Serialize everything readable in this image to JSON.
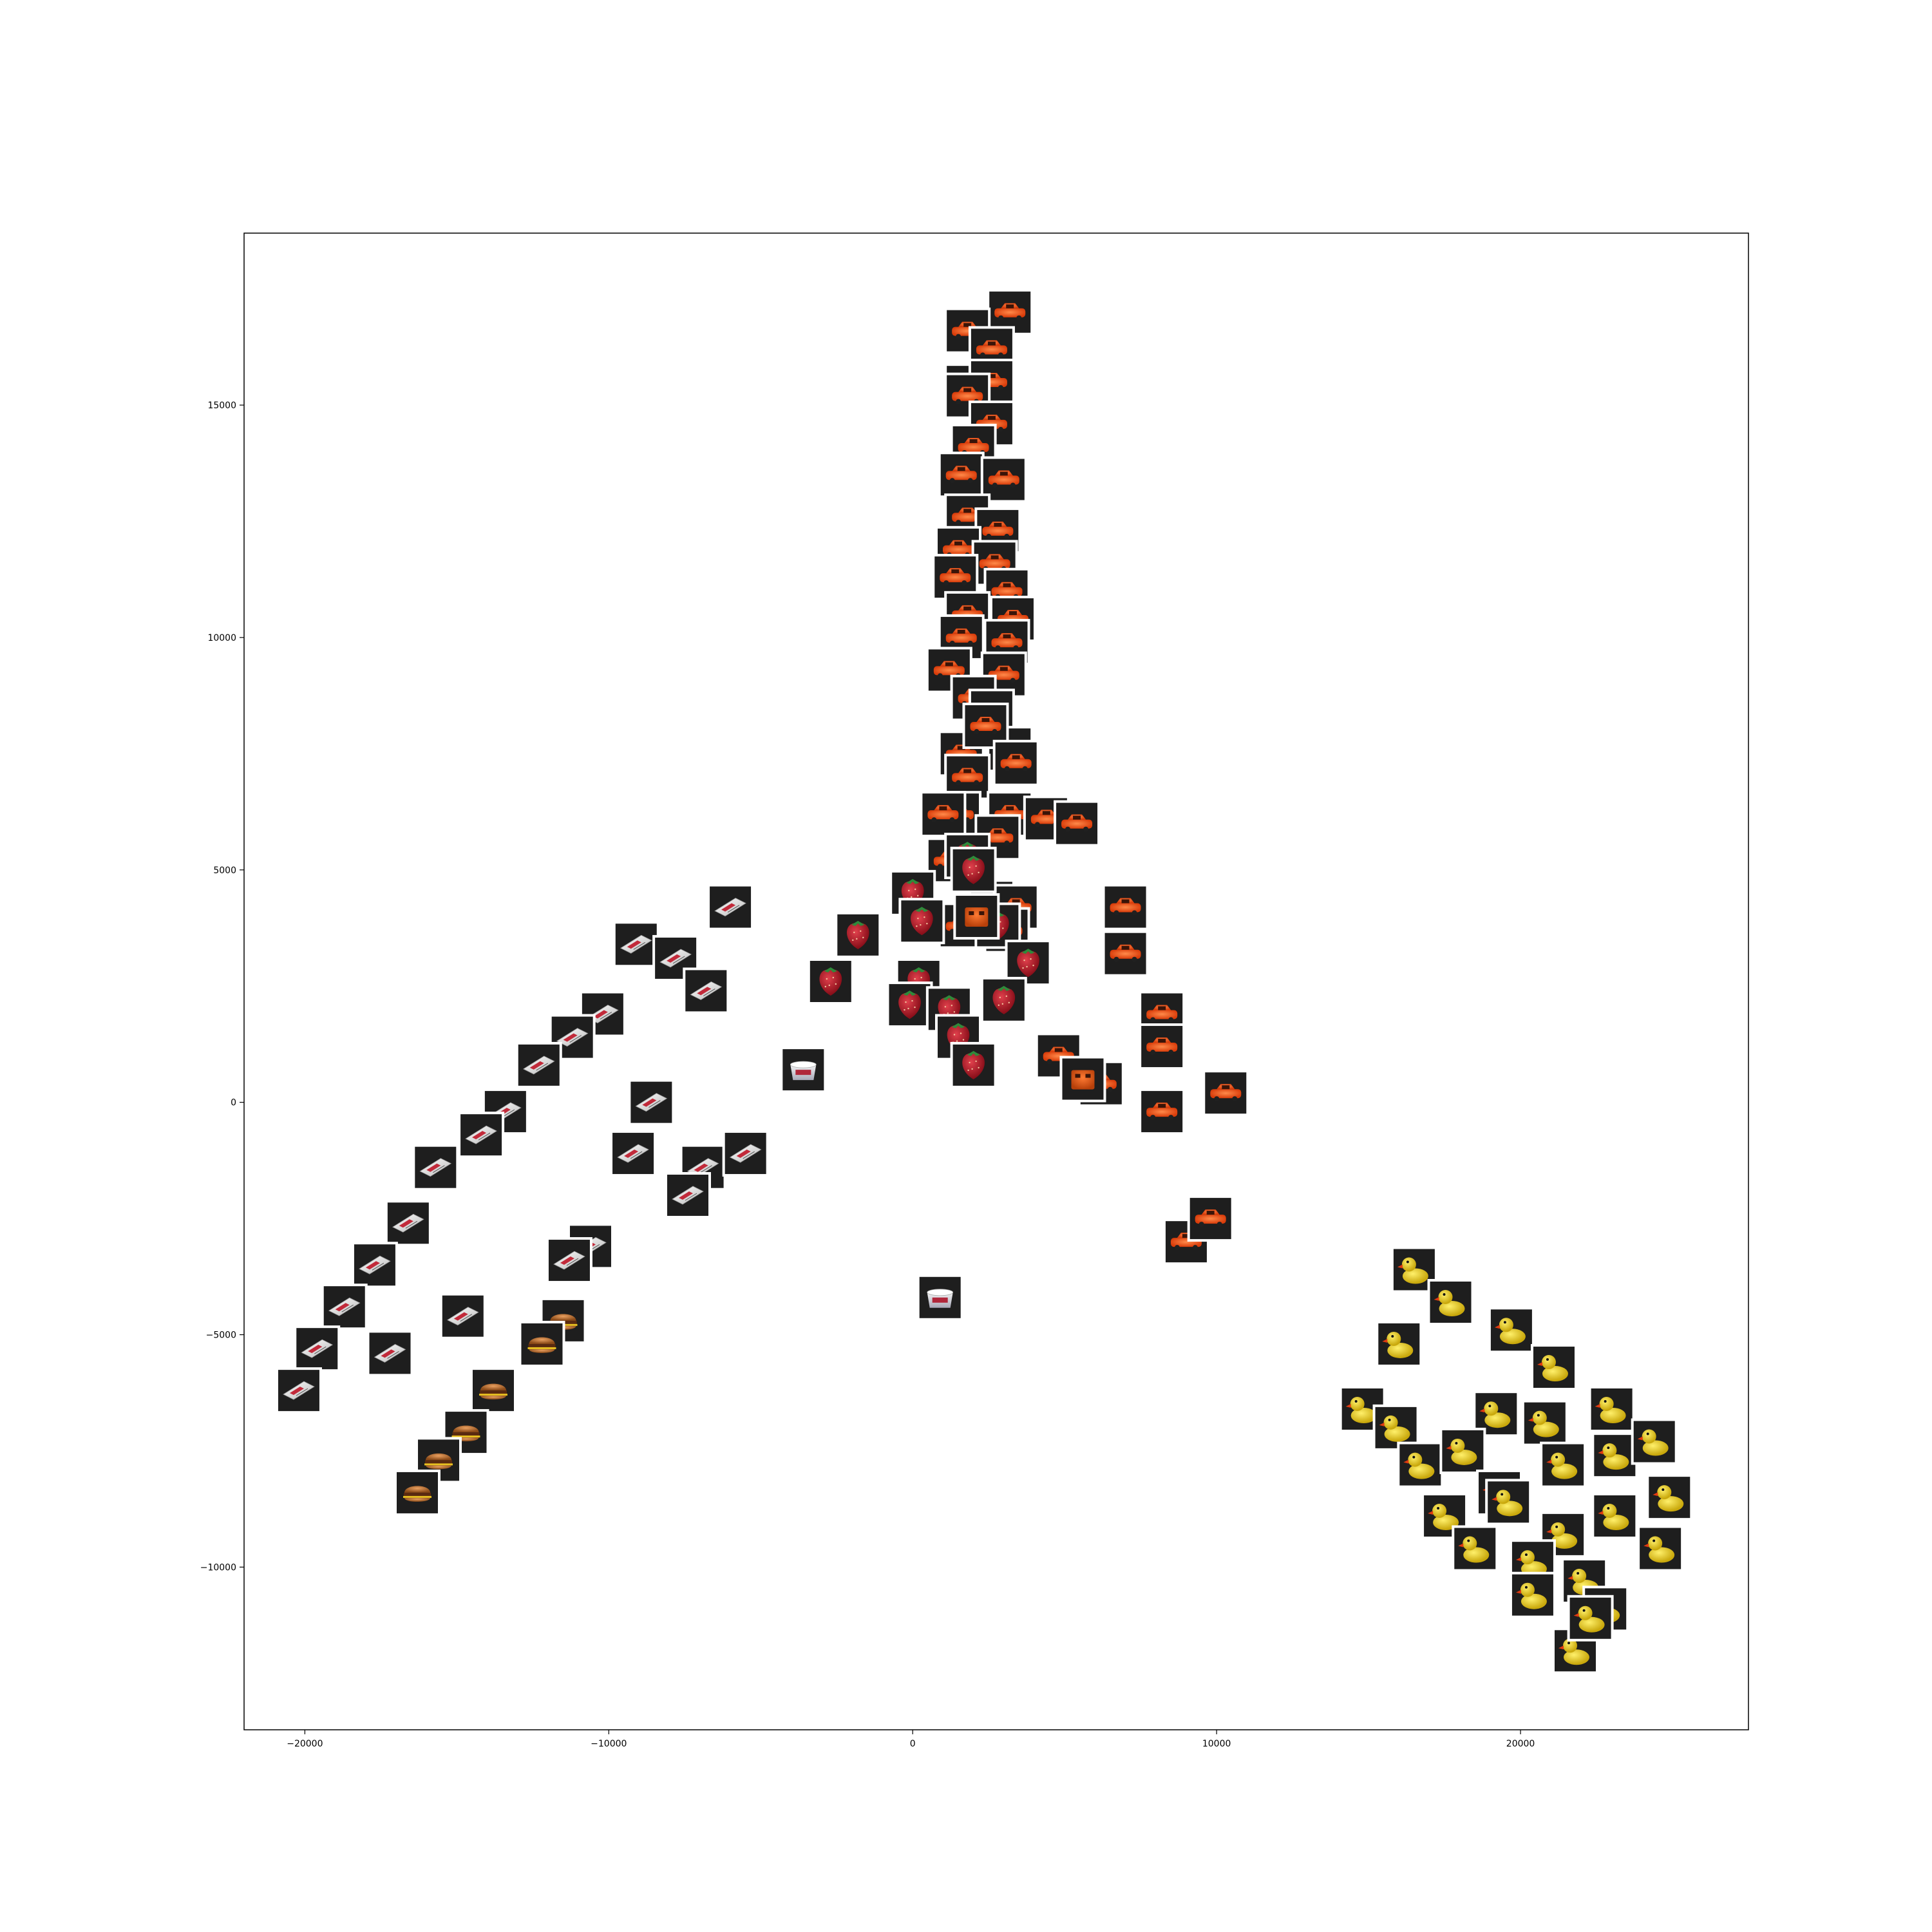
{
  "chart_data": {
    "type": "scatter",
    "title": "",
    "xlabel": "",
    "ylabel": "",
    "xlim": [
      -22000,
      27500
    ],
    "ylim": [
      -13500,
      18700
    ],
    "grid": false,
    "marker": "image-thumbnail",
    "xticks": [
      {
        "value": -20000,
        "label": "−20000"
      },
      {
        "value": -10000,
        "label": "−10000"
      },
      {
        "value": 0,
        "label": "0"
      },
      {
        "value": 10000,
        "label": "10000"
      },
      {
        "value": 20000,
        "label": "20000"
      }
    ],
    "yticks": [
      {
        "value": -10000,
        "label": "−10000"
      },
      {
        "value": -5000,
        "label": "−5000"
      },
      {
        "value": 0,
        "label": "0"
      },
      {
        "value": 5000,
        "label": "5000"
      },
      {
        "value": 10000,
        "label": "10000"
      },
      {
        "value": 15000,
        "label": "15000"
      }
    ],
    "series": [
      {
        "icon": "toy-car-icon",
        "color": "#ff5a1e",
        "x": [
          3200,
          1800,
          2600,
          1800,
          2600,
          1800,
          2600,
          2000,
          1600,
          3000,
          1800,
          2800,
          1500,
          2700,
          1400,
          3100,
          1800,
          3300,
          1600,
          3100,
          1200,
          3000,
          2000,
          2600,
          1600,
          3200,
          2400,
          1800,
          3400,
          1500,
          3200,
          1000,
          2800,
          1200,
          2600,
          3400,
          1600,
          3100,
          4400,
          5400,
          7000,
          7000,
          8200,
          8200,
          4800,
          6200,
          8200,
          10300,
          9000,
          9800
        ],
        "y": [
          17000,
          16600,
          16200,
          15400,
          15500,
          15200,
          14600,
          14100,
          13500,
          13400,
          12600,
          12300,
          11900,
          11600,
          11300,
          11000,
          10500,
          10400,
          10000,
          9900,
          9300,
          9200,
          8700,
          8400,
          7500,
          7600,
          8100,
          7000,
          7300,
          6200,
          6200,
          6200,
          5700,
          5200,
          4300,
          4200,
          3800,
          3700,
          6100,
          6000,
          4200,
          3200,
          1900,
          1200,
          1000,
          400,
          -200,
          200,
          -3000,
          -2500
        ]
      },
      {
        "icon": "strawberry-icon",
        "color": "#c41f2c",
        "x": [
          -1800,
          -2700,
          0,
          300,
          1800,
          2000,
          2800,
          3800,
          200,
          -100,
          1200,
          1500,
          3000,
          2000
        ],
        "y": [
          3600,
          2600,
          4500,
          3900,
          5300,
          5000,
          3800,
          3000,
          2600,
          2100,
          2000,
          1400,
          2200,
          800
        ]
      },
      {
        "icon": "orange-box-icon",
        "color": "#e8540e",
        "x": [
          2100,
          5600
        ],
        "y": [
          4000,
          500
        ]
      },
      {
        "icon": "rubber-duck-icon",
        "color": "#f2d51a",
        "x": [
          16500,
          17700,
          16000,
          19700,
          21100,
          14800,
          15900,
          19200,
          20800,
          23000,
          16700,
          18100,
          19300,
          21400,
          23100,
          24400,
          17500,
          19600,
          21400,
          23100,
          24900,
          18500,
          20400,
          22100,
          24600,
          20400,
          22800,
          21800,
          22300
        ],
        "y": [
          -3600,
          -4300,
          -5200,
          -4900,
          -5700,
          -6600,
          -7000,
          -6700,
          -6900,
          -6600,
          -7800,
          -7500,
          -8400,
          -7800,
          -7600,
          -7300,
          -8900,
          -8600,
          -9300,
          -8900,
          -8500,
          -9600,
          -9900,
          -10300,
          -9600,
          -10600,
          -10900,
          -11800,
          -11100
        ]
      },
      {
        "icon": "hamburger-icon",
        "color": "#c46a2a",
        "x": [
          -11500,
          -12200,
          -13800,
          -14700,
          -15600,
          -16300
        ],
        "y": [
          -4700,
          -5200,
          -6200,
          -7100,
          -7700,
          -8400
        ]
      },
      {
        "icon": "white-box-icon",
        "color": "#e4e4e4",
        "x": [
          -6000,
          -9100,
          -7800,
          -6800,
          -10200,
          -11200,
          -12300,
          -13400,
          -14200,
          -15700,
          -16600,
          -17700,
          -18700,
          -19600,
          -20200,
          -8600,
          -9200,
          -6900,
          -7400,
          -10600,
          -11300,
          -5500,
          -14800,
          -17200
        ],
        "y": [
          4200,
          3400,
          3100,
          2400,
          1900,
          1400,
          800,
          -200,
          -700,
          -1400,
          -2600,
          -3500,
          -4400,
          -5300,
          -6200,
          0,
          -1100,
          -1400,
          -2000,
          -3100,
          -3400,
          -1100,
          -4600,
          -5400
        ]
      },
      {
        "icon": "tub-icon",
        "color": "#d9d9d9",
        "x": [
          -3600,
          900
        ],
        "y": [
          700,
          -4200
        ]
      }
    ]
  }
}
